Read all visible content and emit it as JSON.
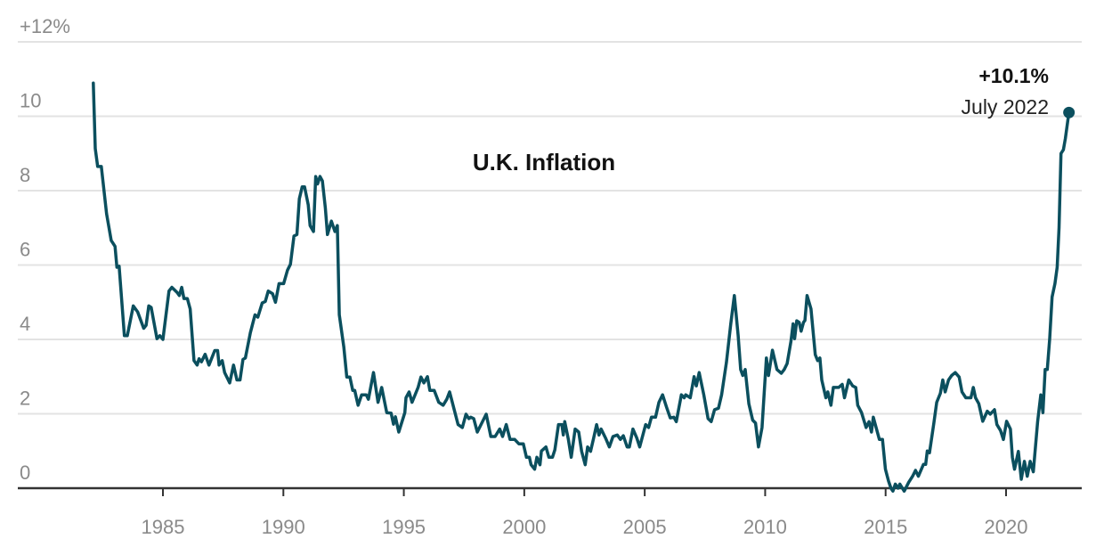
{
  "chart_data": {
    "type": "line",
    "title": "U.K. Inflation",
    "xlabel": "",
    "ylabel": "",
    "ylim": [
      0,
      12
    ],
    "y_ticks": [
      0,
      2,
      4,
      6,
      8,
      10,
      12
    ],
    "y_tick_labels": [
      "0",
      "2",
      "4",
      "6",
      "8",
      "10",
      "+12%"
    ],
    "x_ticks": [
      1985,
      1990,
      1995,
      2000,
      2005,
      2010,
      2015,
      2020
    ],
    "x_tick_labels": [
      "1985",
      "1990",
      "1995",
      "2000",
      "2005",
      "2010",
      "2015",
      "2020"
    ],
    "grid": true,
    "color": "#0b4f5e",
    "annotation": {
      "value_label": "+10.1%",
      "date_label": "July 2022",
      "x": 2022.5,
      "y": 10.1
    },
    "series": [
      {
        "points": [
          [
            1982.0,
            10.89
          ],
          [
            1982.08,
            9.13
          ],
          [
            1982.18,
            8.65
          ],
          [
            1982.33,
            8.65
          ],
          [
            1982.55,
            7.38
          ],
          [
            1982.74,
            6.66
          ],
          [
            1982.9,
            6.5
          ],
          [
            1982.98,
            5.94
          ],
          [
            1983.07,
            5.97
          ],
          [
            1983.29,
            4.1
          ],
          [
            1983.41,
            4.1
          ],
          [
            1983.66,
            4.9
          ],
          [
            1983.84,
            4.74
          ],
          [
            1984.09,
            4.3
          ],
          [
            1984.19,
            4.38
          ],
          [
            1984.3,
            4.9
          ],
          [
            1984.4,
            4.86
          ],
          [
            1984.64,
            4.02
          ],
          [
            1984.76,
            4.1
          ],
          [
            1984.89,
            4.0
          ],
          [
            1985.14,
            5.3
          ],
          [
            1985.26,
            5.4
          ],
          [
            1985.48,
            5.26
          ],
          [
            1985.57,
            5.18
          ],
          [
            1985.67,
            5.4
          ],
          [
            1985.76,
            5.1
          ],
          [
            1985.9,
            5.1
          ],
          [
            1986.02,
            4.82
          ],
          [
            1986.18,
            3.43
          ],
          [
            1986.31,
            3.31
          ],
          [
            1986.39,
            3.48
          ],
          [
            1986.49,
            3.4
          ],
          [
            1986.64,
            3.6
          ],
          [
            1986.8,
            3.31
          ],
          [
            1987.04,
            3.7
          ],
          [
            1987.16,
            3.7
          ],
          [
            1987.22,
            3.31
          ],
          [
            1987.35,
            3.43
          ],
          [
            1987.45,
            3.11
          ],
          [
            1987.66,
            2.83
          ],
          [
            1987.82,
            3.31
          ],
          [
            1987.96,
            2.91
          ],
          [
            1988.09,
            2.91
          ],
          [
            1988.21,
            3.46
          ],
          [
            1988.31,
            3.5
          ],
          [
            1988.52,
            4.18
          ],
          [
            1988.71,
            4.66
          ],
          [
            1988.83,
            4.6
          ],
          [
            1989.01,
            4.98
          ],
          [
            1989.14,
            5.02
          ],
          [
            1989.26,
            5.3
          ],
          [
            1989.44,
            5.23
          ],
          [
            1989.56,
            5.0
          ],
          [
            1989.71,
            5.5
          ],
          [
            1989.9,
            5.5
          ],
          [
            1990.06,
            5.86
          ],
          [
            1990.18,
            6.02
          ],
          [
            1990.33,
            6.78
          ],
          [
            1990.45,
            6.82
          ],
          [
            1990.55,
            7.78
          ],
          [
            1990.67,
            8.1
          ],
          [
            1990.77,
            8.1
          ],
          [
            1990.92,
            7.62
          ],
          [
            1991.0,
            7.06
          ],
          [
            1991.14,
            6.9
          ],
          [
            1991.23,
            8.38
          ],
          [
            1991.31,
            8.18
          ],
          [
            1991.41,
            8.38
          ],
          [
            1991.51,
            8.26
          ],
          [
            1991.63,
            7.54
          ],
          [
            1991.72,
            6.82
          ],
          [
            1991.88,
            7.18
          ],
          [
            1992.03,
            6.9
          ],
          [
            1992.13,
            7.06
          ],
          [
            1992.21,
            4.66
          ],
          [
            1992.4,
            3.79
          ],
          [
            1992.52,
            2.99
          ],
          [
            1992.65,
            2.99
          ],
          [
            1992.77,
            2.63
          ],
          [
            1992.85,
            2.63
          ],
          [
            1992.99,
            2.23
          ],
          [
            1993.14,
            2.51
          ],
          [
            1993.33,
            2.51
          ],
          [
            1993.42,
            2.39
          ],
          [
            1993.63,
            3.11
          ],
          [
            1993.82,
            2.31
          ],
          [
            1993.97,
            2.71
          ],
          [
            1994.18,
            2.03
          ],
          [
            1994.36,
            2.02
          ],
          [
            1994.46,
            1.72
          ],
          [
            1994.54,
            1.92
          ],
          [
            1994.68,
            1.51
          ],
          [
            1994.93,
            2.03
          ],
          [
            1994.98,
            2.43
          ],
          [
            1995.11,
            2.59
          ],
          [
            1995.23,
            2.31
          ],
          [
            1995.48,
            2.71
          ],
          [
            1995.6,
            2.99
          ],
          [
            1995.72,
            2.83
          ],
          [
            1995.87,
            3.0
          ],
          [
            1995.97,
            2.63
          ],
          [
            1996.15,
            2.63
          ],
          [
            1996.34,
            2.31
          ],
          [
            1996.52,
            2.23
          ],
          [
            1996.67,
            2.39
          ],
          [
            1996.79,
            2.59
          ],
          [
            1996.95,
            2.19
          ],
          [
            1997.14,
            1.71
          ],
          [
            1997.32,
            1.63
          ],
          [
            1997.47,
            1.99
          ],
          [
            1997.59,
            1.87
          ],
          [
            1997.67,
            1.91
          ],
          [
            1997.79,
            1.87
          ],
          [
            1997.94,
            1.51
          ],
          [
            1998.31,
            1.99
          ],
          [
            1998.5,
            1.39
          ],
          [
            1998.68,
            1.39
          ],
          [
            1998.87,
            1.59
          ],
          [
            1998.99,
            1.39
          ],
          [
            1999.14,
            1.71
          ],
          [
            1999.3,
            1.31
          ],
          [
            1999.49,
            1.31
          ],
          [
            1999.67,
            1.19
          ],
          [
            1999.85,
            1.19
          ],
          [
            1999.98,
            0.83
          ],
          [
            2000.1,
            0.83
          ],
          [
            2000.17,
            0.63
          ],
          [
            2000.32,
            0.51
          ],
          [
            2000.41,
            0.83
          ],
          [
            2000.54,
            0.63
          ],
          [
            2000.6,
            1.0
          ],
          [
            2000.79,
            1.11
          ],
          [
            2000.91,
            0.83
          ],
          [
            2001.06,
            0.83
          ],
          [
            2001.16,
            1.03
          ],
          [
            2001.31,
            1.71
          ],
          [
            2001.45,
            1.71
          ],
          [
            2001.51,
            1.43
          ],
          [
            2001.57,
            1.79
          ],
          [
            2001.72,
            1.31
          ],
          [
            2001.84,
            0.83
          ],
          [
            2002.0,
            1.59
          ],
          [
            2002.15,
            1.51
          ],
          [
            2002.27,
            0.99
          ],
          [
            2002.42,
            0.63
          ],
          [
            2002.52,
            1.11
          ],
          [
            2002.64,
            0.99
          ],
          [
            2002.77,
            1.35
          ],
          [
            2002.89,
            1.71
          ],
          [
            2002.99,
            1.43
          ],
          [
            2003.08,
            1.59
          ],
          [
            2003.26,
            1.35
          ],
          [
            2003.42,
            1.11
          ],
          [
            2003.57,
            1.39
          ],
          [
            2003.75,
            1.43
          ],
          [
            2003.88,
            1.31
          ],
          [
            2004.0,
            1.41
          ],
          [
            2004.16,
            1.11
          ],
          [
            2004.25,
            1.11
          ],
          [
            2004.4,
            1.59
          ],
          [
            2004.56,
            1.35
          ],
          [
            2004.68,
            1.11
          ],
          [
            2004.93,
            1.71
          ],
          [
            2005.05,
            1.63
          ],
          [
            2005.17,
            1.91
          ],
          [
            2005.34,
            1.91
          ],
          [
            2005.48,
            2.31
          ],
          [
            2005.63,
            2.51
          ],
          [
            2005.79,
            2.19
          ],
          [
            2005.95,
            1.89
          ],
          [
            2006.1,
            1.91
          ],
          [
            2006.2,
            1.79
          ],
          [
            2006.41,
            2.51
          ],
          [
            2006.53,
            2.43
          ],
          [
            2006.59,
            2.51
          ],
          [
            2006.78,
            2.43
          ],
          [
            2006.94,
            3.0
          ],
          [
            2007.03,
            2.75
          ],
          [
            2007.15,
            3.11
          ],
          [
            2007.34,
            2.51
          ],
          [
            2007.52,
            1.87
          ],
          [
            2007.65,
            1.79
          ],
          [
            2007.79,
            2.11
          ],
          [
            2007.95,
            2.15
          ],
          [
            2008.08,
            2.51
          ],
          [
            2008.28,
            3.38
          ],
          [
            2008.46,
            4.42
          ],
          [
            2008.61,
            5.18
          ],
          [
            2008.77,
            4.1
          ],
          [
            2008.87,
            3.19
          ],
          [
            2008.96,
            3.03
          ],
          [
            2009.06,
            3.19
          ],
          [
            2009.21,
            2.27
          ],
          [
            2009.37,
            1.83
          ],
          [
            2009.49,
            1.75
          ],
          [
            2009.61,
            1.11
          ],
          [
            2009.76,
            1.63
          ],
          [
            2009.94,
            3.5
          ],
          [
            2010.03,
            3.03
          ],
          [
            2010.19,
            3.71
          ],
          [
            2010.38,
            3.19
          ],
          [
            2010.56,
            3.09
          ],
          [
            2010.68,
            3.19
          ],
          [
            2010.8,
            3.35
          ],
          [
            2010.96,
            3.95
          ],
          [
            2011.05,
            4.42
          ],
          [
            2011.11,
            4.02
          ],
          [
            2011.2,
            4.5
          ],
          [
            2011.3,
            4.46
          ],
          [
            2011.38,
            4.22
          ],
          [
            2011.48,
            4.46
          ],
          [
            2011.54,
            4.51
          ],
          [
            2011.63,
            5.18
          ],
          [
            2011.79,
            4.82
          ],
          [
            2011.97,
            3.59
          ],
          [
            2012.07,
            3.43
          ],
          [
            2012.16,
            3.5
          ],
          [
            2012.24,
            2.91
          ],
          [
            2012.41,
            2.43
          ],
          [
            2012.49,
            2.59
          ],
          [
            2012.62,
            2.23
          ],
          [
            2012.72,
            2.71
          ],
          [
            2012.94,
            2.71
          ],
          [
            2013.09,
            2.79
          ],
          [
            2013.18,
            2.43
          ],
          [
            2013.36,
            2.91
          ],
          [
            2013.52,
            2.75
          ],
          [
            2013.65,
            2.71
          ],
          [
            2013.73,
            2.23
          ],
          [
            2013.89,
            2.03
          ],
          [
            2014.08,
            1.63
          ],
          [
            2014.2,
            1.79
          ],
          [
            2014.3,
            1.51
          ],
          [
            2014.38,
            1.91
          ],
          [
            2014.51,
            1.59
          ],
          [
            2014.63,
            1.31
          ],
          [
            2014.76,
            1.31
          ],
          [
            2014.88,
            0.51
          ],
          [
            2015.01,
            0.19
          ],
          [
            2015.11,
            0.0
          ],
          [
            2015.19,
            -0.08
          ],
          [
            2015.29,
            0.11
          ],
          [
            2015.41,
            0.0
          ],
          [
            2015.48,
            0.11
          ],
          [
            2015.66,
            -0.08
          ],
          [
            2015.85,
            0.16
          ],
          [
            2016.01,
            0.32
          ],
          [
            2016.13,
            0.48
          ],
          [
            2016.25,
            0.32
          ],
          [
            2016.46,
            0.64
          ],
          [
            2016.55,
            0.64
          ],
          [
            2016.62,
            1.0
          ],
          [
            2016.71,
            0.95
          ],
          [
            2016.89,
            1.75
          ],
          [
            2017.01,
            2.31
          ],
          [
            2017.16,
            2.55
          ],
          [
            2017.26,
            2.91
          ],
          [
            2017.36,
            2.59
          ],
          [
            2017.5,
            2.91
          ],
          [
            2017.63,
            3.03
          ],
          [
            2017.78,
            3.11
          ],
          [
            2017.94,
            2.99
          ],
          [
            2018.06,
            2.59
          ],
          [
            2018.22,
            2.43
          ],
          [
            2018.43,
            2.43
          ],
          [
            2018.53,
            2.71
          ],
          [
            2018.62,
            2.43
          ],
          [
            2018.76,
            2.27
          ],
          [
            2018.92,
            1.8
          ],
          [
            2019.11,
            2.07
          ],
          [
            2019.23,
            1.99
          ],
          [
            2019.41,
            2.11
          ],
          [
            2019.51,
            1.71
          ],
          [
            2019.66,
            1.55
          ],
          [
            2019.78,
            1.31
          ],
          [
            2019.91,
            1.8
          ],
          [
            2020.07,
            1.59
          ],
          [
            2020.15,
            0.83
          ],
          [
            2020.24,
            0.51
          ],
          [
            2020.4,
            0.99
          ],
          [
            2020.52,
            0.24
          ],
          [
            2020.65,
            0.72
          ],
          [
            2020.77,
            0.32
          ],
          [
            2020.89,
            0.72
          ],
          [
            2021.02,
            0.44
          ],
          [
            2021.2,
            1.8
          ],
          [
            2021.33,
            2.51
          ],
          [
            2021.42,
            2.03
          ],
          [
            2021.51,
            3.19
          ],
          [
            2021.6,
            3.19
          ],
          [
            2021.7,
            4.02
          ],
          [
            2021.8,
            5.14
          ],
          [
            2021.92,
            5.5
          ],
          [
            2022.01,
            5.94
          ],
          [
            2022.09,
            7.0
          ],
          [
            2022.17,
            9.0
          ],
          [
            2022.27,
            9.1
          ],
          [
            2022.35,
            9.4
          ],
          [
            2022.5,
            10.1
          ]
        ]
      }
    ]
  }
}
